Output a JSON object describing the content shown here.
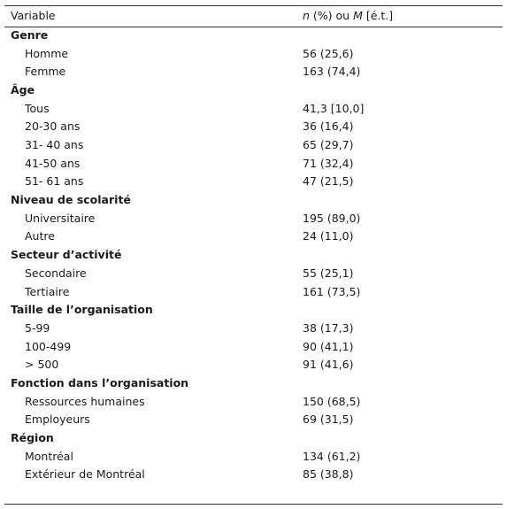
{
  "table": {
    "header": {
      "variable": "Variable",
      "stat": [
        "n",
        " (%) ou ",
        "M",
        " [é.t.]"
      ]
    },
    "groups": [
      {
        "title": "Genre",
        "rows": [
          [
            "Homme",
            "56 (25,6)"
          ],
          [
            "Femme",
            "163 (74,4)"
          ]
        ]
      },
      {
        "title": "Âge",
        "rows": [
          [
            "Tous",
            "41,3 [10,0]"
          ],
          [
            "20-30 ans",
            "36 (16,4)"
          ],
          [
            "31- 40 ans",
            "65 (29,7)"
          ],
          [
            "41-50 ans",
            "71 (32,4)"
          ],
          [
            "51- 61 ans",
            "47 (21,5)"
          ]
        ]
      },
      {
        "title": "Niveau de scolarité",
        "rows": [
          [
            "Universitaire",
            "195 (89,0)"
          ],
          [
            "Autre",
            "24 (11,0)"
          ]
        ]
      },
      {
        "title": "Secteur d’activité",
        "rows": [
          [
            "Secondaire",
            "55 (25,1)"
          ],
          [
            "Tertiaire",
            "161 (73,5)"
          ]
        ]
      },
      {
        "title": "Taille de l’organisation",
        "rows": [
          [
            "5-99",
            "38 (17,3)"
          ],
          [
            "100-499",
            "90 (41,1)"
          ],
          [
            "> 500",
            "91 (41,6)"
          ]
        ]
      },
      {
        "title": "Fonction dans l’organisation",
        "rows": [
          [
            "Ressources humaines",
            "150 (68,5)"
          ],
          [
            "Employeurs",
            "69 (31,5)"
          ]
        ]
      },
      {
        "title": "Région",
        "rows": [
          [
            "Montréal",
            "134 (61,2)"
          ],
          [
            "Extérieur de Montréal",
            "85 (38,8)"
          ]
        ]
      }
    ]
  }
}
